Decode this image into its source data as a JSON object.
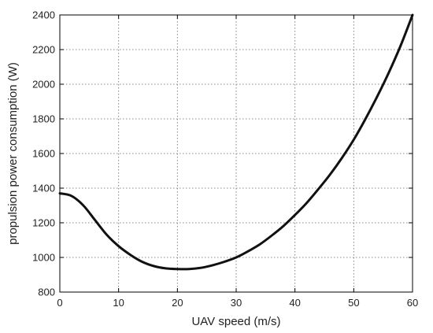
{
  "chart_data": {
    "type": "line",
    "xlabel": "UAV speed (m/s)",
    "ylabel": "propulsion power consumption (W)",
    "xlim": [
      0,
      60
    ],
    "ylim": [
      800,
      2400
    ],
    "xticks": [
      0,
      10,
      20,
      30,
      40,
      50,
      60
    ],
    "yticks": [
      800,
      1000,
      1200,
      1400,
      1600,
      1800,
      2000,
      2200,
      2400
    ],
    "xtick_labels": [
      "0",
      "10",
      "20",
      "30",
      "40",
      "50",
      "60"
    ],
    "ytick_labels": [
      "800",
      "1000",
      "1200",
      "1400",
      "1600",
      "1800",
      "2000",
      "2200",
      "2400"
    ],
    "grid": true,
    "series": [
      {
        "x": [
          0,
          2,
          4,
          6,
          8,
          10,
          12,
          14,
          16,
          18,
          20,
          22,
          24,
          26,
          28,
          30,
          32,
          34,
          36,
          38,
          40,
          42,
          44,
          46,
          48,
          50,
          52,
          54,
          56,
          58,
          60
        ],
        "values": [
          1370,
          1355,
          1300,
          1215,
          1130,
          1065,
          1015,
          975,
          950,
          937,
          933,
          933,
          940,
          955,
          975,
          1000,
          1035,
          1075,
          1125,
          1180,
          1245,
          1315,
          1395,
          1480,
          1575,
          1680,
          1800,
          1930,
          2070,
          2225,
          2400
        ],
        "color": "#111111"
      }
    ]
  }
}
